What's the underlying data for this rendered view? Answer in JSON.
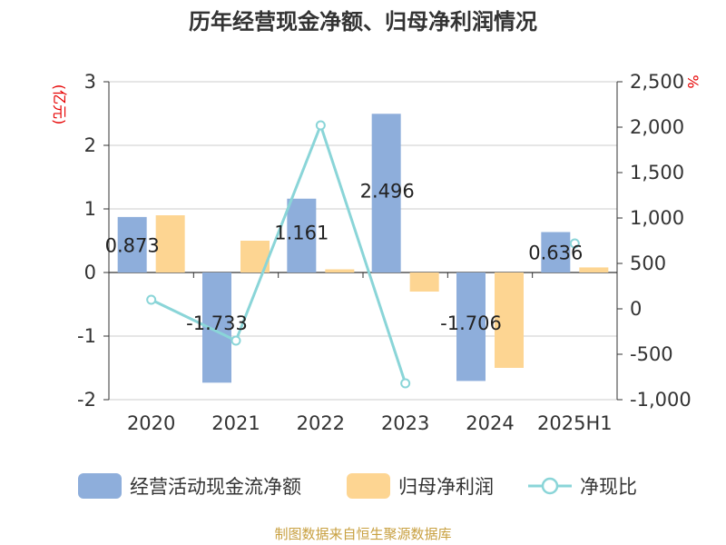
{
  "colors": {
    "cashflow": "#8eaedb",
    "netprofit": "#fdd592",
    "ratio": "#8ad5d8",
    "unit": "#e60000",
    "source": "#c8a040"
  },
  "chart_data": {
    "type": "bar",
    "title": "历年经营现金净额、归母净利润情况",
    "left_unit": "(亿元)",
    "right_unit": "%",
    "categories": [
      "2020",
      "2021",
      "2022",
      "2023",
      "2024",
      "2025H1"
    ],
    "series": [
      {
        "name": "经营活动现金流净额",
        "type": "bar",
        "axis": "left",
        "values": [
          0.873,
          -1.733,
          1.161,
          2.496,
          -1.706,
          0.636
        ],
        "labels": [
          "0.873",
          "-1.733",
          "1.161",
          "2.496",
          "-1.706",
          "0.636"
        ]
      },
      {
        "name": "归母净利润",
        "type": "bar",
        "axis": "left",
        "values": [
          0.9,
          0.5,
          0.05,
          -0.3,
          -1.5,
          0.08
        ]
      },
      {
        "name": "净现比",
        "type": "line",
        "axis": "right",
        "values": [
          100,
          -350,
          2020,
          -820,
          null,
          720
        ]
      }
    ],
    "left_axis": {
      "min": -2,
      "max": 3,
      "ticks": [
        "3",
        "2",
        "1",
        "0",
        "-1",
        "-2"
      ]
    },
    "right_axis": {
      "min": -1000,
      "max": 2500,
      "ticks": [
        "2,500",
        "2,000",
        "1,500",
        "1,000",
        "500",
        "0",
        "-500",
        "-1,000"
      ]
    },
    "legend_position": "bottom",
    "grid": true
  },
  "source_note": "制图数据来自恒生聚源数据库"
}
